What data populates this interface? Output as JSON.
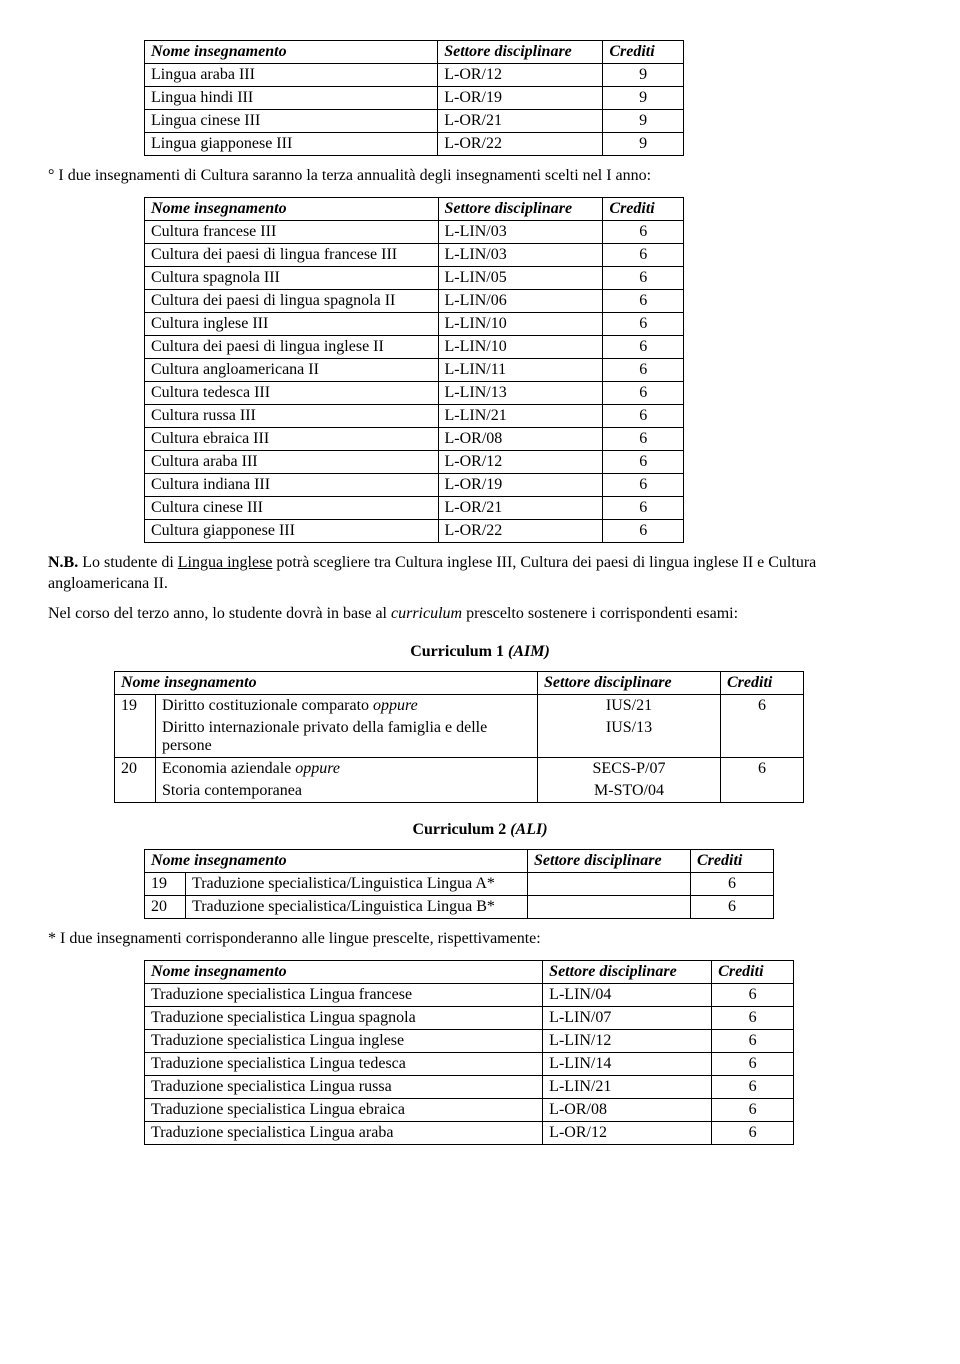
{
  "headers": {
    "name": "Nome insegnamento",
    "sector": "Settore disciplinare",
    "credits": "Crediti"
  },
  "table1": {
    "rows": [
      [
        "Lingua araba III",
        "L-OR/12",
        "9"
      ],
      [
        "Lingua hindi III",
        "L-OR/19",
        "9"
      ],
      [
        "Lingua cinese III",
        "L-OR/21",
        "9"
      ],
      [
        "Lingua giapponese III",
        "L-OR/22",
        "9"
      ]
    ]
  },
  "para1": "° I due insegnamenti di Cultura saranno la terza annualità degli insegnamenti scelti nel I anno:",
  "table2": {
    "rows": [
      [
        "Cultura francese III",
        "L-LIN/03",
        "6"
      ],
      [
        "Cultura dei paesi di lingua francese III",
        "L-LIN/03",
        "6"
      ],
      [
        "Cultura spagnola III",
        "L-LIN/05",
        "6"
      ],
      [
        "Cultura dei paesi di lingua spagnola II",
        "L-LIN/06",
        "6"
      ],
      [
        "Cultura inglese III",
        "L-LIN/10",
        "6"
      ],
      [
        "Cultura dei paesi di lingua inglese II",
        "L-LIN/10",
        "6"
      ],
      [
        "Cultura angloamericana II",
        "L-LIN/11",
        "6"
      ],
      [
        "Cultura tedesca III",
        "L-LIN/13",
        "6"
      ],
      [
        "Cultura russa III",
        "L-LIN/21",
        "6"
      ],
      [
        "Cultura ebraica III",
        "L-OR/08",
        "6"
      ],
      [
        "Cultura araba III",
        "L-OR/12",
        "6"
      ],
      [
        "Cultura indiana III",
        "L-OR/19",
        "6"
      ],
      [
        "Cultura cinese III",
        "L-OR/21",
        "6"
      ],
      [
        "Cultura giapponese III",
        "L-OR/22",
        "6"
      ]
    ]
  },
  "nb": {
    "bold": "N.B.",
    "pre": " Lo studente di ",
    "underline": "Lingua inglese",
    "post": " potrà scegliere tra Cultura inglese III, Cultura dei paesi di lingua inglese II e Cultura angloamericana II."
  },
  "para2_pre": "Nel corso del terzo anno, lo studente dovrà in base al ",
  "para2_em": "curriculum",
  "para2_post": " prescelto sostenere i corrispondenti esami:",
  "curriculum1_label": "Curriculum",
  "curriculum1_num": " 1 ",
  "curriculum1_em": "(AIM)",
  "table3": {
    "rows": [
      {
        "num": "19",
        "name_a": "Diritto costituzionale comparato ",
        "name_a_em": "oppure",
        "name_b": "Diritto internazionale privato della famiglia e delle persone",
        "sector_a": "IUS/21",
        "sector_b": "IUS/13",
        "credits": "6"
      },
      {
        "num": "20",
        "name_a": "Economia aziendale ",
        "name_a_em": "oppure",
        "name_b": "Storia contemporanea",
        "sector_a": "SECS-P/07",
        "sector_b": "M-STO/04",
        "credits": "6"
      }
    ]
  },
  "curriculum2_label": "Curriculum",
  "curriculum2_num": " 2 ",
  "curriculum2_em": "(ALI)",
  "table4": {
    "rows": [
      [
        "19",
        "Traduzione specialistica/Linguistica Lingua A*",
        "",
        "6"
      ],
      [
        "20",
        "Traduzione specialistica/Linguistica Lingua B*",
        "",
        "6"
      ]
    ]
  },
  "para3": "* I due insegnamenti corrisponderanno alle lingue prescelte, rispettivamente:",
  "table5": {
    "rows": [
      [
        "Traduzione specialistica Lingua francese",
        "L-LIN/04",
        "6"
      ],
      [
        "Traduzione specialistica Lingua spagnola",
        "L-LIN/07",
        "6"
      ],
      [
        "Traduzione specialistica Lingua inglese",
        "L-LIN/12",
        "6"
      ],
      [
        "Traduzione specialistica Lingua tedesca",
        "L-LIN/14",
        "6"
      ],
      [
        "Traduzione specialistica Lingua russa",
        "L-LIN/21",
        "6"
      ],
      [
        "Traduzione specialistica Lingua ebraica",
        "L-OR/08",
        "6"
      ],
      [
        "Traduzione specialistica Lingua araba",
        "L-OR/12",
        "6"
      ]
    ]
  }
}
